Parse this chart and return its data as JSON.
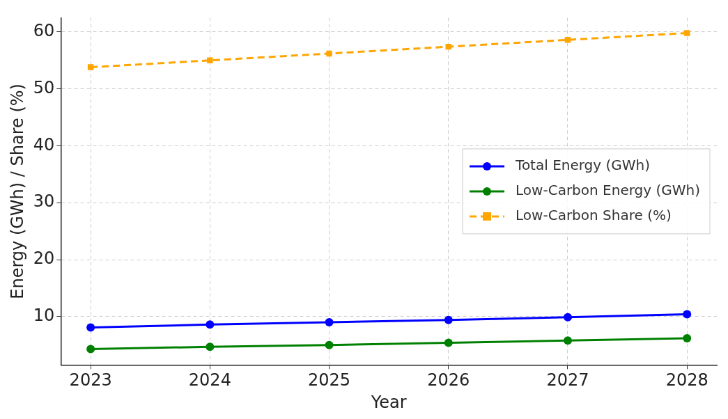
{
  "chart_data": {
    "type": "line",
    "xlabel": "Year",
    "ylabel": "Energy (GWh) / Share (%)",
    "x": [
      2023,
      2024,
      2025,
      2026,
      2027,
      2028
    ],
    "xlim": [
      2022.75,
      2028.25
    ],
    "xticks": [
      2023,
      2024,
      2025,
      2026,
      2027,
      2028
    ],
    "ylim": [
      1.5,
      62.5
    ],
    "yticks": [
      10,
      20,
      30,
      40,
      50,
      60
    ],
    "grid": true,
    "legend": "right",
    "series": [
      {
        "name": "Total Energy (GWh)",
        "color": "#0000ff",
        "marker": "circle",
        "line_style": "solid",
        "values": [
          8.1,
          8.6,
          9.0,
          9.4,
          9.9,
          10.4
        ]
      },
      {
        "name": "Low-Carbon Energy (GWh)",
        "color": "#008000",
        "marker": "circle",
        "line_style": "solid",
        "values": [
          4.3,
          4.7,
          5.0,
          5.4,
          5.8,
          6.2
        ]
      },
      {
        "name": "Low-Carbon Share (%)",
        "color": "#ffa500",
        "marker": "square",
        "line_style": "dashed",
        "values": [
          53.8,
          55.0,
          56.2,
          57.4,
          58.6,
          59.8
        ]
      }
    ]
  }
}
